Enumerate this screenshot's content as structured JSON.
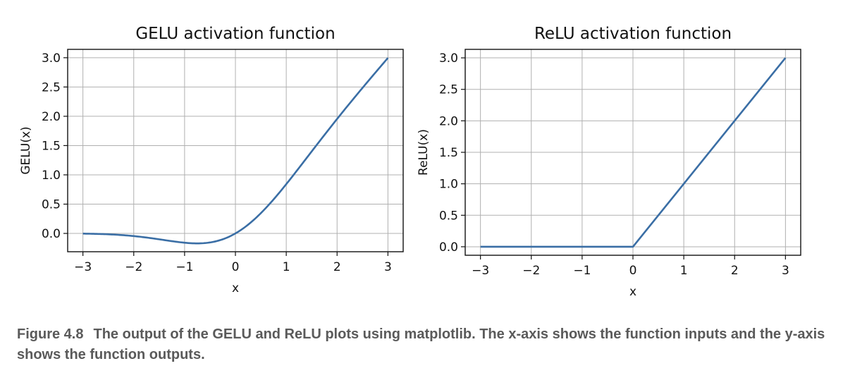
{
  "chart_data": [
    {
      "type": "line",
      "function": "gelu",
      "title": "GELU activation function",
      "xlabel": "x",
      "ylabel": "GELU(x)",
      "xlim": [
        -3,
        3
      ],
      "ylim": [
        -0.17,
        3.0
      ],
      "xticks": [
        -3,
        -2,
        -1,
        0,
        1,
        2,
        3
      ],
      "xtick_labels": [
        "−3",
        "−2",
        "−1",
        "0",
        "1",
        "2",
        "3"
      ],
      "yticks": [
        0.0,
        0.5,
        1.0,
        1.5,
        2.0,
        2.5,
        3.0
      ],
      "ytick_labels": [
        "0.0",
        "0.5",
        "1.0",
        "1.5",
        "2.0",
        "2.5",
        "3.0"
      ],
      "grid": true,
      "series": [
        {
          "color": "#3a6ea5",
          "x": [
            -3.0,
            -2.5,
            -2.0,
            -1.5,
            -1.0,
            -0.75,
            -0.5,
            -0.25,
            0.0,
            0.25,
            0.5,
            0.75,
            1.0,
            1.5,
            2.0,
            2.5,
            3.0
          ],
          "y": [
            -0.004,
            -0.015,
            -0.045,
            -0.1,
            -0.159,
            -0.17,
            -0.154,
            -0.1,
            0.0,
            0.15,
            0.346,
            0.58,
            0.841,
            1.4,
            1.955,
            2.485,
            2.996
          ]
        }
      ]
    },
    {
      "type": "line",
      "function": "relu",
      "title": "ReLU activation function",
      "xlabel": "x",
      "ylabel": "ReLU(x)",
      "xlim": [
        -3,
        3
      ],
      "ylim": [
        0.0,
        3.0
      ],
      "xticks": [
        -3,
        -2,
        -1,
        0,
        1,
        2,
        3
      ],
      "xtick_labels": [
        "−3",
        "−2",
        "−1",
        "0",
        "1",
        "2",
        "3"
      ],
      "yticks": [
        0.0,
        0.5,
        1.0,
        1.5,
        2.0,
        2.5,
        3.0
      ],
      "ytick_labels": [
        "0.0",
        "0.5",
        "1.0",
        "1.5",
        "2.0",
        "2.5",
        "3.0"
      ],
      "grid": true,
      "series": [
        {
          "color": "#3a6ea5",
          "x": [
            -3.0,
            -2.0,
            -1.0,
            0.0,
            1.0,
            2.0,
            3.0
          ],
          "y": [
            0.0,
            0.0,
            0.0,
            0.0,
            1.0,
            2.0,
            3.0
          ]
        }
      ]
    }
  ],
  "caption": {
    "label": "Figure 4.8",
    "text": "The output of the GELU and ReLU plots using matplotlib. The x-axis shows the function inputs and the y-axis shows the function outputs."
  }
}
